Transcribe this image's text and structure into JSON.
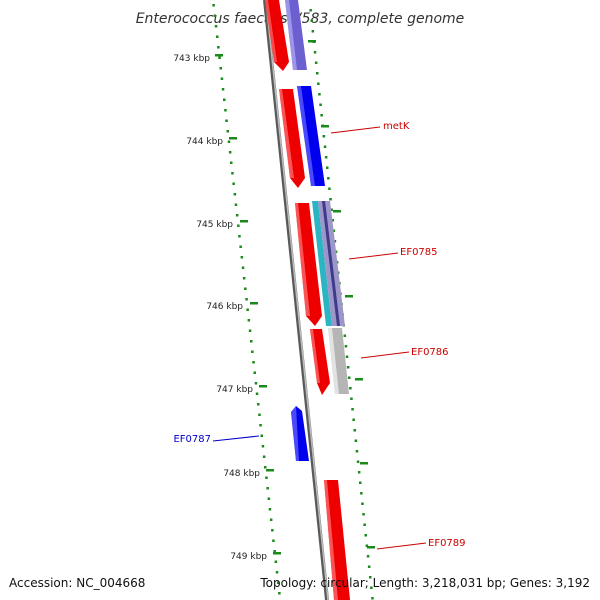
{
  "title": "Enterococcus faecalis V583, complete genome",
  "footer": {
    "accession": "Accession: NC_004668",
    "topology": "Topology: circular; Length: 3,218,031 bp; Genes: 3,192"
  },
  "ticks": [
    "743 kbp",
    "744 kbp",
    "745 kbp",
    "746 kbp",
    "747 kbp",
    "748 kbp",
    "749 kbp"
  ],
  "gene_labels": {
    "metK": "metK",
    "ef0785": "EF0785",
    "ef0786": "EF0786",
    "ef0787": "EF0787",
    "ef0789": "EF0789"
  },
  "colors": {
    "forward_cds": "#ff0000",
    "reverse_cds": "#0000ff",
    "light_reverse_cds": "#7b6fd6",
    "cyan_feature": "#20b8c0",
    "gray_feature": "#bbbbbb",
    "backbone": "#888888",
    "gc_dots": "#1a8a1a",
    "red_label": "#cc0000",
    "blue_label": "#0000cc"
  }
}
